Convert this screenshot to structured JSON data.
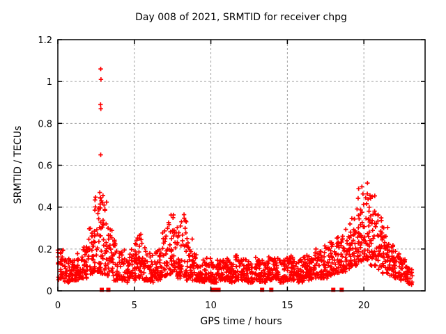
{
  "chart_data": {
    "type": "scatter",
    "title": "Day 008 of 2021, SRMTID for receiver chpg",
    "xlabel": "GPS time / hours",
    "ylabel": "SRMTID / TECUs",
    "xlim": [
      0,
      24
    ],
    "ylim": [
      0,
      1.2
    ],
    "xticks": [
      0,
      5,
      10,
      15,
      20
    ],
    "yticks": [
      0,
      0.2,
      0.4,
      0.6,
      0.8,
      1,
      1.2
    ],
    "grid": true,
    "legend": "none",
    "colors": {
      "marker": "#ff0000",
      "grid": "#a0a0a0",
      "border": "#000000",
      "background": "#ffffff",
      "text": "#000000"
    },
    "series": [
      {
        "name": "SRMTID",
        "marker": "plus",
        "band_profile_format": [
          "t_start_hours",
          "t_end_hours",
          "n_points",
          "v_min_TECUs",
          "v_max_TECUs"
        ],
        "band_profile": [
          [
            0.0,
            0.4,
            30,
            0.05,
            0.2
          ],
          [
            0.4,
            0.8,
            30,
            0.04,
            0.16
          ],
          [
            0.8,
            1.2,
            30,
            0.05,
            0.15
          ],
          [
            1.2,
            1.6,
            30,
            0.05,
            0.18
          ],
          [
            1.6,
            2.0,
            30,
            0.06,
            0.22
          ],
          [
            2.0,
            2.4,
            32,
            0.08,
            0.3
          ],
          [
            2.4,
            2.8,
            32,
            0.09,
            0.45
          ],
          [
            2.8,
            3.2,
            32,
            0.08,
            0.45
          ],
          [
            3.2,
            3.6,
            30,
            0.07,
            0.3
          ],
          [
            3.6,
            4.0,
            30,
            0.05,
            0.25
          ],
          [
            4.0,
            4.4,
            30,
            0.05,
            0.2
          ],
          [
            4.4,
            4.8,
            28,
            0.04,
            0.18
          ],
          [
            4.8,
            5.2,
            30,
            0.05,
            0.25
          ],
          [
            5.2,
            5.6,
            30,
            0.06,
            0.28
          ],
          [
            5.6,
            6.0,
            30,
            0.05,
            0.22
          ],
          [
            6.0,
            6.4,
            28,
            0.04,
            0.18
          ],
          [
            6.4,
            6.8,
            30,
            0.05,
            0.2
          ],
          [
            6.8,
            7.2,
            32,
            0.07,
            0.32
          ],
          [
            7.2,
            7.6,
            32,
            0.08,
            0.37
          ],
          [
            7.6,
            8.0,
            32,
            0.06,
            0.33
          ],
          [
            8.0,
            8.4,
            32,
            0.07,
            0.37
          ],
          [
            8.4,
            8.8,
            30,
            0.05,
            0.25
          ],
          [
            8.8,
            9.2,
            30,
            0.05,
            0.18
          ],
          [
            9.2,
            9.6,
            28,
            0.04,
            0.15
          ],
          [
            9.6,
            10.0,
            30,
            0.05,
            0.16
          ],
          [
            10.0,
            10.4,
            28,
            0.04,
            0.14
          ],
          [
            10.4,
            10.8,
            30,
            0.05,
            0.15
          ],
          [
            10.8,
            11.2,
            30,
            0.05,
            0.16
          ],
          [
            11.2,
            11.6,
            28,
            0.04,
            0.15
          ],
          [
            11.6,
            12.0,
            30,
            0.05,
            0.17
          ],
          [
            12.0,
            12.4,
            30,
            0.05,
            0.16
          ],
          [
            12.4,
            12.8,
            28,
            0.04,
            0.15
          ],
          [
            12.8,
            13.2,
            30,
            0.05,
            0.16
          ],
          [
            13.2,
            13.6,
            28,
            0.04,
            0.15
          ],
          [
            13.6,
            14.0,
            30,
            0.05,
            0.17
          ],
          [
            14.0,
            14.4,
            30,
            0.05,
            0.16
          ],
          [
            14.4,
            14.8,
            28,
            0.04,
            0.15
          ],
          [
            14.8,
            15.2,
            30,
            0.05,
            0.16
          ],
          [
            15.2,
            15.6,
            30,
            0.05,
            0.17
          ],
          [
            15.6,
            16.0,
            28,
            0.04,
            0.16
          ],
          [
            16.0,
            16.4,
            30,
            0.05,
            0.17
          ],
          [
            16.4,
            16.8,
            30,
            0.05,
            0.18
          ],
          [
            16.8,
            17.2,
            30,
            0.06,
            0.2
          ],
          [
            17.2,
            17.6,
            30,
            0.06,
            0.22
          ],
          [
            17.6,
            18.0,
            30,
            0.07,
            0.24
          ],
          [
            18.0,
            18.4,
            30,
            0.08,
            0.26
          ],
          [
            18.4,
            18.8,
            30,
            0.09,
            0.28
          ],
          [
            18.8,
            19.2,
            32,
            0.1,
            0.33
          ],
          [
            19.2,
            19.6,
            34,
            0.12,
            0.4
          ],
          [
            19.6,
            20.0,
            36,
            0.14,
            0.5
          ],
          [
            20.0,
            20.4,
            36,
            0.14,
            0.52
          ],
          [
            20.4,
            20.8,
            34,
            0.12,
            0.47
          ],
          [
            20.8,
            21.2,
            32,
            0.1,
            0.38
          ],
          [
            21.2,
            21.6,
            32,
            0.08,
            0.32
          ],
          [
            21.6,
            22.0,
            30,
            0.07,
            0.26
          ],
          [
            22.0,
            22.4,
            30,
            0.06,
            0.2
          ],
          [
            22.4,
            22.8,
            28,
            0.05,
            0.15
          ],
          [
            22.8,
            23.2,
            24,
            0.03,
            0.11
          ]
        ],
        "outliers": [
          [
            2.8,
            1.06
          ],
          [
            2.82,
            1.01
          ],
          [
            2.79,
            0.89
          ],
          [
            2.81,
            0.87
          ],
          [
            2.8,
            0.65
          ],
          [
            2.74,
            0.47
          ],
          [
            2.78,
            0.445
          ],
          [
            2.84,
            0.43
          ],
          [
            2.95,
            0.455
          ],
          [
            3.02,
            0.41
          ],
          [
            2.68,
            0.395
          ],
          [
            3.08,
            0.385
          ],
          [
            2.62,
            0.37
          ]
        ]
      },
      {
        "name": "flagged intervals",
        "marker": "filled-square",
        "y": 0,
        "x": [
          2.87,
          3.3,
          10.1,
          10.3,
          10.5,
          13.35,
          13.95,
          18.0,
          18.55
        ]
      }
    ]
  }
}
